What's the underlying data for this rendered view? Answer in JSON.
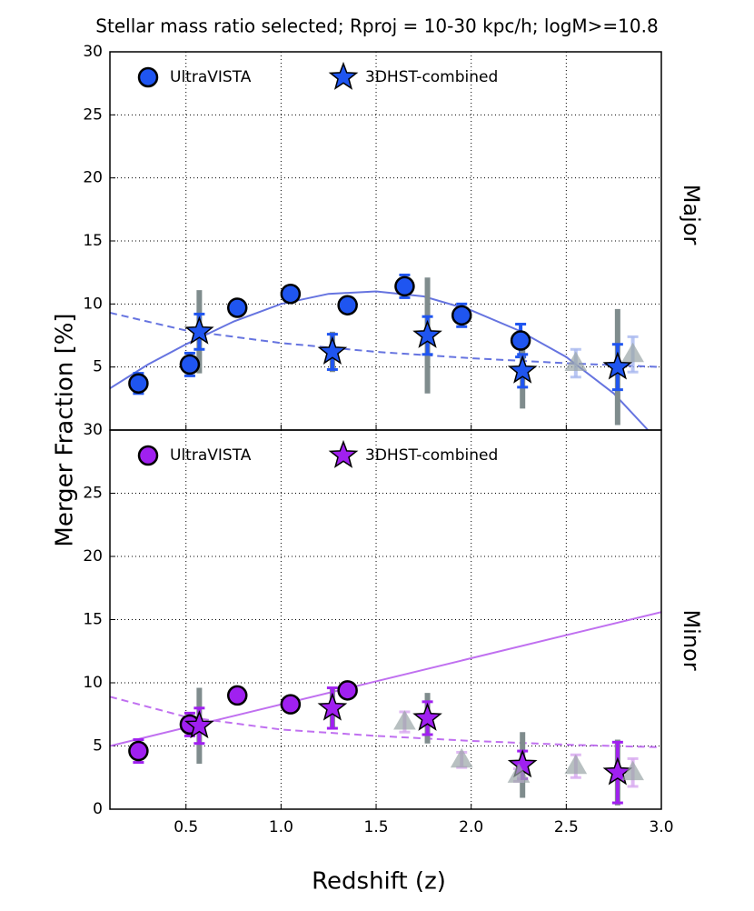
{
  "chart_data": [
    {
      "type": "scatter",
      "title": "Stellar mass ratio selected; Rproj = 10-30 kpc/h; logM>=10.8",
      "ylabel": "Merger Fraction [%]",
      "panel_label": "Major",
      "xlim": [
        0.1,
        3.0
      ],
      "ylim": [
        0,
        30
      ],
      "yticks": [
        5,
        10,
        15,
        20,
        25,
        30
      ],
      "grid": true,
      "legend": "upper left",
      "series": [
        {
          "name": "UltraVISTA",
          "marker": "circle",
          "color": "#1f55f0",
          "errcolor": "#1f55f0",
          "x": [
            0.25,
            0.52,
            0.77,
            1.05,
            1.35,
            1.65,
            1.95,
            2.26
          ],
          "values": [
            3.7,
            5.2,
            9.7,
            10.8,
            9.9,
            11.4,
            9.1,
            7.1
          ],
          "errors": [
            0.8,
            0.9,
            0.5,
            0.6,
            0.6,
            0.9,
            0.9,
            1.3
          ]
        },
        {
          "name": "3DHST-combined",
          "marker": "star",
          "color": "#1f55f0",
          "errcolor": "#1f55f0",
          "totalcolor": "#7f8c8d",
          "x": [
            0.57,
            1.27,
            1.77,
            2.27,
            2.77
          ],
          "values": [
            7.8,
            6.2,
            7.5,
            4.7,
            5.0
          ],
          "errors": [
            1.4,
            1.4,
            1.5,
            1.3,
            1.8
          ],
          "errors_total": [
            3.3,
            1.6,
            4.6,
            3.0,
            4.6
          ]
        },
        {
          "marker": "triangle",
          "color": "#9aa5a6",
          "errcolor": "#a8b8f0",
          "x": [
            2.55,
            2.85
          ],
          "values": [
            5.3,
            6.0
          ],
          "errors": [
            1.1,
            1.4
          ]
        },
        {
          "marker": "line",
          "style": "solid",
          "color": "#6674e0",
          "x": [
            0.1,
            0.3,
            0.5,
            0.75,
            1.0,
            1.25,
            1.5,
            1.75,
            2.0,
            2.25,
            2.5,
            2.75,
            2.93
          ],
          "values": [
            3.3,
            5.2,
            6.8,
            8.6,
            10.0,
            10.8,
            11.0,
            10.6,
            9.5,
            7.9,
            5.8,
            2.9,
            0
          ]
        },
        {
          "marker": "line",
          "style": "dashed",
          "color": "#6674e0",
          "x": [
            0.1,
            0.5,
            1.0,
            1.5,
            2.0,
            2.5,
            3.0
          ],
          "values": [
            9.3,
            7.9,
            6.9,
            6.2,
            5.7,
            5.3,
            5.0
          ]
        }
      ]
    },
    {
      "type": "scatter",
      "xlabel": "Redshift (z)",
      "panel_label": "Minor",
      "xlim": [
        0.1,
        3.0
      ],
      "ylim": [
        0,
        30
      ],
      "yticks": [
        0,
        5,
        10,
        15,
        20,
        25,
        30
      ],
      "xticks": [
        0.5,
        {
          "value": 1,
          "label": "1.0"
        },
        1.5,
        {
          "value": 2,
          "label": "2.0"
        },
        2.5,
        {
          "value": 3,
          "label": "3.0"
        }
      ],
      "grid": true,
      "legend": "upper left",
      "series": [
        {
          "name": "UltraVISTA",
          "marker": "circle",
          "color": "#a020f0",
          "errcolor": "#a020f0",
          "x": [
            0.25,
            0.52,
            0.77,
            1.05,
            1.35
          ],
          "values": [
            4.6,
            6.7,
            9.0,
            8.3,
            9.4
          ],
          "errors": [
            0.9,
            0.9,
            0.4,
            0.4,
            0.4
          ]
        },
        {
          "name": "3DHST-combined",
          "marker": "star",
          "color": "#a020f0",
          "errcolor": "#a020f0",
          "totalcolor": "#7f8c8d",
          "x": [
            0.57,
            1.27,
            1.77,
            2.27,
            2.77
          ],
          "values": [
            6.6,
            8.0,
            7.2,
            3.5,
            2.9
          ],
          "errors": [
            1.4,
            1.6,
            1.3,
            1.1,
            2.4
          ],
          "errors_total": [
            3.0,
            1.6,
            2.0,
            2.6,
            2.6
          ]
        },
        {
          "marker": "triangle",
          "color": "#9aa5a6",
          "errcolor": "#d8a8f0",
          "x": [
            1.65,
            1.95,
            2.25,
            2.55,
            2.85
          ],
          "values": [
            6.9,
            3.9,
            2.7,
            3.4,
            2.9
          ],
          "errors": [
            0.8,
            0.6,
            0.5,
            0.9,
            1.1
          ]
        },
        {
          "marker": "line",
          "style": "solid",
          "color": "#c070f0",
          "x": [
            0.1,
            3.0
          ],
          "values": [
            5.0,
            15.6
          ]
        },
        {
          "marker": "line",
          "style": "dashed",
          "color": "#c070f0",
          "x": [
            0.1,
            0.5,
            1.0,
            1.5,
            2.0,
            2.5,
            3.0
          ],
          "values": [
            8.9,
            7.3,
            6.3,
            5.8,
            5.4,
            5.1,
            4.9
          ]
        }
      ]
    }
  ]
}
